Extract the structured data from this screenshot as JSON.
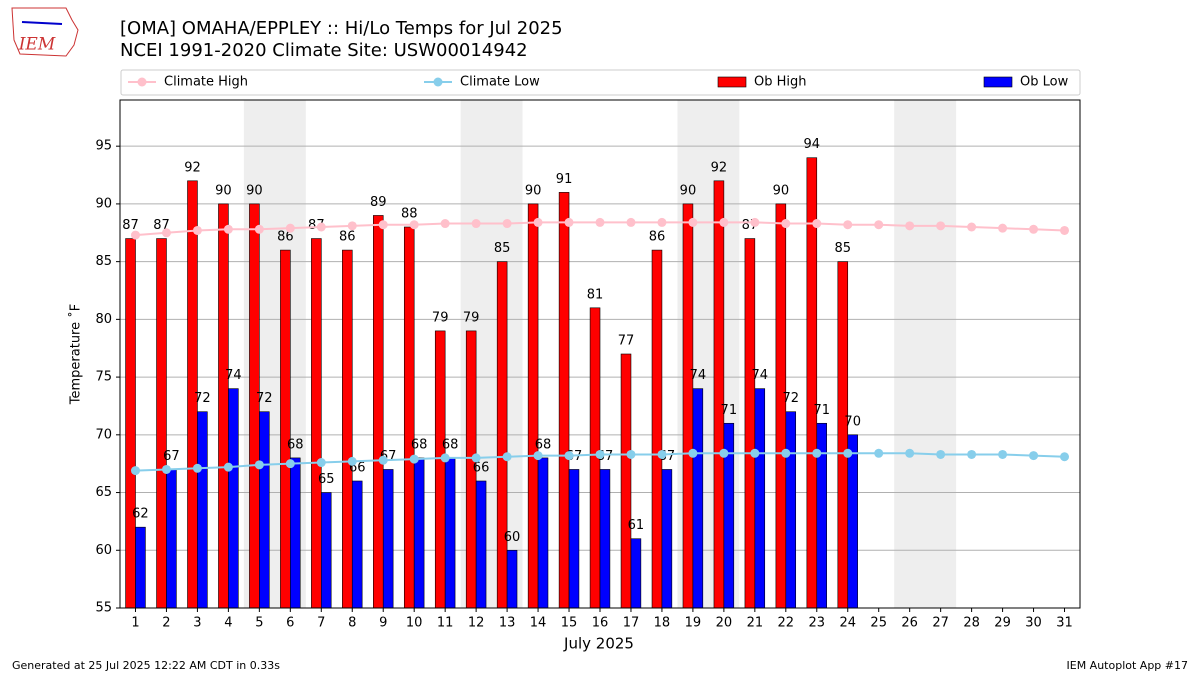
{
  "logo": "IEM",
  "footer": {
    "left": "Generated at 25 Jul 2025 12:22 AM CDT in 0.33s",
    "right": "IEM Autoplot App #17"
  },
  "chart_data": {
    "type": "bar",
    "title": "[OMA] OMAHA/EPPLEY :: Hi/Lo Temps for Jul 2025",
    "subtitle": "NCEI 1991-2020 Climate Site: USW00014942",
    "xlabel": "July 2025",
    "ylabel": "Temperature ˚F",
    "categories": [
      "1",
      "2",
      "3",
      "4",
      "5",
      "6",
      "7",
      "8",
      "9",
      "10",
      "11",
      "12",
      "13",
      "14",
      "15",
      "16",
      "17",
      "18",
      "19",
      "20",
      "21",
      "22",
      "23",
      "24",
      "25",
      "26",
      "27",
      "28",
      "29",
      "30",
      "31"
    ],
    "ylim": [
      55,
      99
    ],
    "yticks": [
      55,
      60,
      65,
      70,
      75,
      80,
      85,
      90,
      95
    ],
    "grid": true,
    "series": [
      {
        "name": "Climate High",
        "type": "line",
        "color": "#ffc0cb",
        "values": [
          87.3,
          87.5,
          87.7,
          87.8,
          87.8,
          87.9,
          88.0,
          88.1,
          88.2,
          88.2,
          88.3,
          88.3,
          88.3,
          88.4,
          88.4,
          88.4,
          88.4,
          88.4,
          88.4,
          88.4,
          88.4,
          88.3,
          88.3,
          88.2,
          88.2,
          88.1,
          88.1,
          88.0,
          87.9,
          87.8,
          87.7
        ]
      },
      {
        "name": "Climate Low",
        "type": "line",
        "color": "#87ceeb",
        "values": [
          66.9,
          67.0,
          67.1,
          67.2,
          67.4,
          67.5,
          67.6,
          67.7,
          67.8,
          67.9,
          68.0,
          68.0,
          68.1,
          68.2,
          68.2,
          68.3,
          68.3,
          68.3,
          68.4,
          68.4,
          68.4,
          68.4,
          68.4,
          68.4,
          68.4,
          68.4,
          68.3,
          68.3,
          68.3,
          68.2,
          68.1
        ]
      },
      {
        "name": "Ob High",
        "type": "bar",
        "color": "#ff0000",
        "data_labels": true,
        "values": [
          87,
          87,
          92,
          90,
          90,
          86,
          87,
          86,
          89,
          88,
          79,
          79,
          85,
          90,
          91,
          81,
          77,
          86,
          90,
          92,
          87,
          90,
          94,
          85,
          null,
          null,
          null,
          null,
          null,
          null,
          null
        ]
      },
      {
        "name": "Ob Low",
        "type": "bar",
        "color": "#0000ff",
        "data_labels": true,
        "values": [
          62,
          67,
          72,
          74,
          72,
          68,
          65,
          66,
          67,
          68,
          68,
          66,
          60,
          68,
          67,
          67,
          61,
          67,
          74,
          71,
          74,
          72,
          71,
          70,
          null,
          null,
          null,
          null,
          null,
          null,
          null
        ]
      }
    ]
  }
}
